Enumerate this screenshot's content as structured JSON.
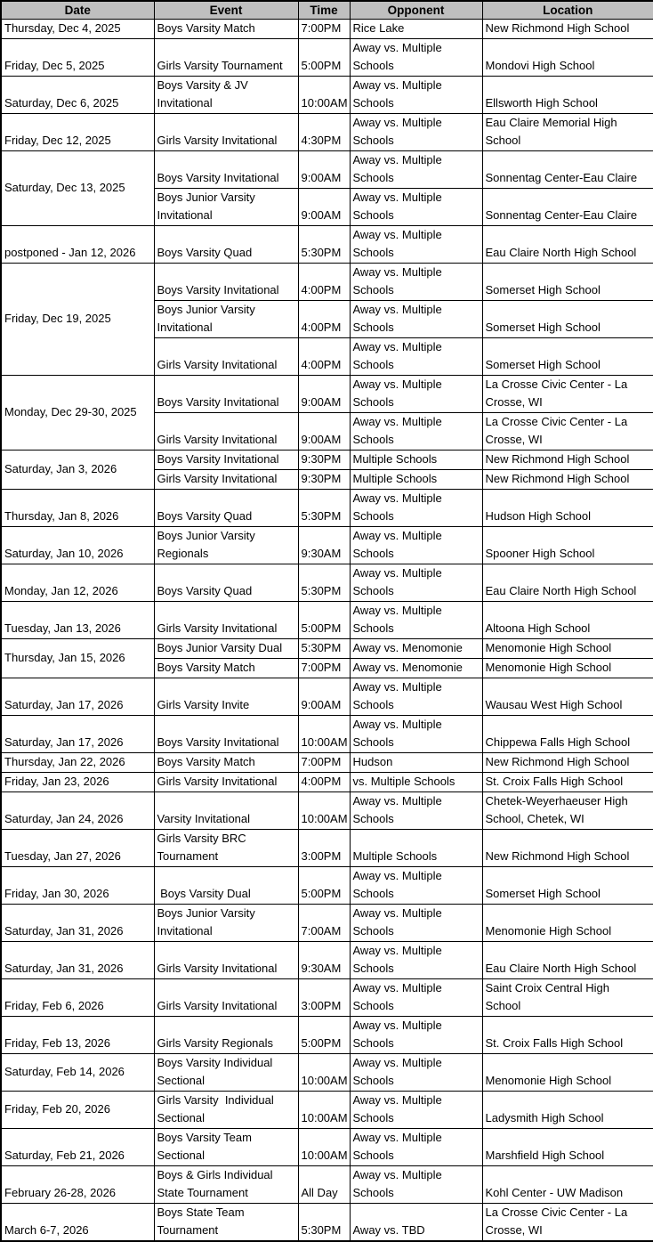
{
  "colors": {
    "header_background": "#BFBFBF",
    "grid_border": "#000000",
    "text": "#000000"
  },
  "table": {
    "headers": [
      "Date",
      "Event",
      "Time",
      "Opponent",
      "Location"
    ],
    "rows": [
      {
        "date": "Thursday, Dec 4, 2025",
        "rowspan": 1,
        "valign": "bottom",
        "lines": 1,
        "event": "Boys Varsity Match",
        "time": "7:00PM",
        "opponent": "Rice Lake",
        "location": "New Richmond High School"
      },
      {
        "date": "Friday, Dec 5, 2025",
        "rowspan": 1,
        "valign": "bottom",
        "lines": 2,
        "event": "Girls Varsity Tournament",
        "time": "5:00PM",
        "opponent": "Away vs. Multiple\nSchools",
        "location": "Mondovi High School"
      },
      {
        "date": "Saturday, Dec 6, 2025",
        "rowspan": 1,
        "valign": "bottom",
        "lines": 2,
        "event": "Boys Varsity & JV\nInvitational",
        "time": "10:00AM",
        "opponent": "Away vs. Multiple\nSchools",
        "location": "Ellsworth High School"
      },
      {
        "date": "Friday, Dec 12, 2025",
        "rowspan": 1,
        "valign": "bottom",
        "lines": 2,
        "event": "Girls Varsity Invitational",
        "time": "4:30PM",
        "opponent": "Away vs. Multiple\nSchools",
        "location": "Eau Claire Memorial High\nSchool"
      },
      {
        "date": "Saturday, Dec 13, 2025",
        "rowspan": 2,
        "valign": "middle",
        "lines": 2,
        "event": "Boys Varsity Invitational",
        "time": "9:00AM",
        "opponent": "Away vs. Multiple\nSchools",
        "location": "Sonnentag Center-Eau Claire"
      },
      {
        "date": null,
        "lines": 2,
        "event": "Boys Junior Varsity\nInvitational",
        "time": "9:00AM",
        "opponent": "Away vs. Multiple\nSchools",
        "location": "Sonnentag Center-Eau Claire"
      },
      {
        "date": "postponed - Jan 12, 2026",
        "rowspan": 1,
        "valign": "bottom",
        "lines": 2,
        "event": "Boys Varsity Quad",
        "time": "5:30PM",
        "opponent": "Away vs. Multiple\nSchools",
        "location": "Eau Claire North High School"
      },
      {
        "date": "Friday, Dec 19, 2025",
        "rowspan": 3,
        "valign": "middle",
        "lines": 2,
        "event": "Boys Varsity Invitational",
        "time": "4:00PM",
        "opponent": "Away vs. Multiple\nSchools",
        "location": "Somerset High School"
      },
      {
        "date": null,
        "lines": 2,
        "event": "Boys Junior Varsity\nInvitational",
        "time": "4:00PM",
        "opponent": "Away vs. Multiple\nSchools",
        "location": "Somerset High School"
      },
      {
        "date": null,
        "lines": 2,
        "event": "Girls Varsity Invitational",
        "time": "4:00PM",
        "opponent": "Away vs. Multiple\nSchools",
        "location": "Somerset High School"
      },
      {
        "date": "Monday, Dec 29-30, 2025",
        "rowspan": 2,
        "valign": "middle",
        "lines": 2,
        "event": "Boys Varsity Invitational",
        "time": "9:00AM",
        "opponent": "Away vs. Multiple\nSchools",
        "location": "La Crosse Civic Center - La\nCrosse, WI"
      },
      {
        "date": null,
        "lines": 2,
        "event": "Girls Varsity Invitational",
        "time": "9:00AM",
        "opponent": "Away vs. Multiple\nSchools",
        "location": "La Crosse Civic Center - La\nCrosse, WI"
      },
      {
        "date": "Saturday, Jan 3, 2026",
        "rowspan": 2,
        "valign": "middle",
        "lines": 1,
        "event": "Boys Varsity Invitational",
        "time": "9:30PM",
        "opponent": "Multiple Schools",
        "location": "New Richmond High School"
      },
      {
        "date": null,
        "lines": 1,
        "event": "Girls Varsity Invitational",
        "time": "9:30PM",
        "opponent": "Multiple Schools",
        "location": "New Richmond High School"
      },
      {
        "date": "Thursday, Jan 8, 2026",
        "rowspan": 1,
        "valign": "bottom",
        "lines": 2,
        "event": "Boys Varsity Quad",
        "time": "5:30PM",
        "opponent": "Away vs. Multiple\nSchools",
        "location": "Hudson High School"
      },
      {
        "date": "Saturday, Jan 10, 2026",
        "rowspan": 1,
        "valign": "bottom",
        "lines": 2,
        "event": "Boys Junior Varsity\nRegionals",
        "time": "9:30AM",
        "opponent": "Away vs. Multiple\nSchools",
        "location": "Spooner High School"
      },
      {
        "date": "Monday, Jan 12, 2026",
        "rowspan": 1,
        "valign": "bottom",
        "lines": 2,
        "event": "Boys Varsity Quad",
        "time": "5:30PM",
        "opponent": "Away vs. Multiple\nSchools",
        "location": "Eau Claire North High School"
      },
      {
        "date": "Tuesday, Jan 13, 2026",
        "rowspan": 1,
        "valign": "bottom",
        "lines": 2,
        "event": "Girls Varsity Invitational",
        "time": "5:00PM",
        "opponent": "Away vs. Multiple\nSchools",
        "location": "Altoona High School"
      },
      {
        "date": "Thursday, Jan 15, 2026",
        "rowspan": 2,
        "valign": "middle",
        "lines": 1,
        "event": "Boys Junior Varsity Dual",
        "time": "5:30PM",
        "opponent": "Away vs. Menomonie",
        "location": "Menomonie High School"
      },
      {
        "date": null,
        "lines": 1,
        "event": "Boys Varsity Match",
        "time": "7:00PM",
        "opponent": "Away vs. Menomonie",
        "location": "Menomonie High School"
      },
      {
        "date": "Saturday, Jan 17, 2026",
        "rowspan": 1,
        "valign": "bottom",
        "lines": 2,
        "event": "Girls Varsity Invite",
        "time": "9:00AM",
        "opponent": "Away vs. Multiple\nSchools",
        "location": "Wausau West High School"
      },
      {
        "date": "Saturday, Jan 17, 2026",
        "rowspan": 1,
        "valign": "bottom",
        "lines": 2,
        "event": "Boys Varsity Invitational",
        "time": "10:00AM",
        "opponent": "Away vs. Multiple\nSchools",
        "location": "Chippewa Falls High School"
      },
      {
        "date": "Thursday, Jan 22, 2026",
        "rowspan": 1,
        "valign": "bottom",
        "lines": 1,
        "event": "Boys Varsity Match",
        "time": "7:00PM",
        "opponent": "Hudson",
        "location": "New Richmond High School"
      },
      {
        "date": "Friday, Jan 23, 2026",
        "rowspan": 1,
        "valign": "bottom",
        "lines": 1,
        "event": "Girls Varsity Invitational",
        "time": "4:00PM",
        "opponent": "vs. Multiple Schools",
        "location": "St. Croix Falls High School"
      },
      {
        "date": "Saturday, Jan 24, 2026",
        "rowspan": 1,
        "valign": "bottom",
        "lines": 2,
        "event": "Varsity Invitational",
        "time": "10:00AM",
        "opponent": "Away vs. Multiple\nSchools",
        "location": "Chetek-Weyerhaeuser High\nSchool, Chetek, WI"
      },
      {
        "date": "Tuesday, Jan 27, 2026",
        "rowspan": 1,
        "valign": "bottom",
        "lines": 2,
        "event": "Girls Varsity BRC\nTournament",
        "time": "3:00PM",
        "opponent": "Multiple Schools",
        "location": "New Richmond High School"
      },
      {
        "date": "Friday, Jan 30, 2026",
        "rowspan": 1,
        "valign": "bottom",
        "lines": 2,
        "event": " Boys Varsity Dual",
        "time": "5:00PM",
        "opponent": "Away vs. Multiple\nSchools",
        "location": "Somerset High School"
      },
      {
        "date": "Saturday, Jan 31, 2026",
        "rowspan": 1,
        "valign": "bottom",
        "lines": 2,
        "event": "Boys Junior Varsity\nInvitational",
        "time": "7:00AM",
        "opponent": "Away vs. Multiple\nSchools",
        "location": "Menomonie High School"
      },
      {
        "date": "Saturday, Jan 31, 2026",
        "rowspan": 1,
        "valign": "bottom",
        "lines": 2,
        "event": "Girls Varsity Invitational",
        "time": "9:30AM",
        "opponent": "Away vs. Multiple\nSchools",
        "location": "Eau Claire North High School"
      },
      {
        "date": "Friday, Feb 6, 2026",
        "rowspan": 1,
        "valign": "bottom",
        "lines": 2,
        "event": "Girls Varsity Invitational",
        "time": "3:00PM",
        "opponent": "Away vs. Multiple\nSchools",
        "location": "Saint Croix Central High\nSchool"
      },
      {
        "date": "Friday, Feb 13, 2026",
        "rowspan": 1,
        "valign": "bottom",
        "lines": 2,
        "event": "Girls Varsity Regionals",
        "time": "5:00PM",
        "opponent": "Away vs. Multiple\nSchools",
        "location": "St. Croix Falls High School"
      },
      {
        "date": "Saturday, Feb 14, 2026",
        "rowspan": 1,
        "valign": "middle",
        "lines": 2,
        "event": "Boys Varsity Individual\nSectional",
        "time": "10:00AM",
        "opponent": "Away vs. Multiple\nSchools",
        "location": "Menomonie High School"
      },
      {
        "date": "Friday, Feb 20, 2026",
        "rowspan": 1,
        "valign": "middle",
        "lines": 2,
        "event": "Girls Varsity  Individual\nSectional",
        "time": "10:00AM",
        "opponent": "Away vs. Multiple\nSchools",
        "location": "Ladysmith High School"
      },
      {
        "date": "Saturday, Feb 21, 2026",
        "rowspan": 1,
        "valign": "bottom",
        "lines": 2,
        "event": "Boys Varsity Team\nSectional",
        "time": "10:00AM",
        "opponent": "Away vs. Multiple\nSchools",
        "location": "Marshfield High School"
      },
      {
        "date": "February 26-28, 2026",
        "rowspan": 1,
        "valign": "bottom",
        "lines": 2,
        "event": "Boys & Girls Individual\nState Tournament",
        "time": "All Day",
        "opponent": "Away vs. Multiple\nSchools",
        "location": "Kohl Center - UW Madison"
      },
      {
        "date": "March 6-7, 2026",
        "rowspan": 1,
        "valign": "bottom",
        "lines": 2,
        "event": "Boys State Team\nTournament",
        "time": "5:30PM",
        "opponent": "Away vs. TBD",
        "location": "La Crosse Civic Center - La\nCrosse, WI"
      }
    ]
  }
}
